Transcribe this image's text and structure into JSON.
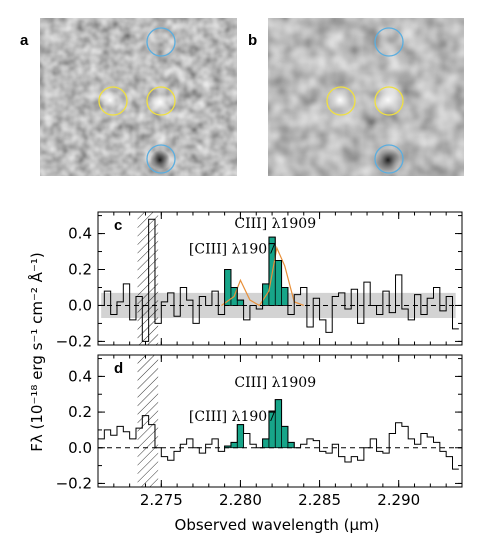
{
  "images": [
    {
      "label": "a",
      "circle_colors": [
        "#f0e040",
        "#f0e040",
        "#5aaee0",
        "#5aaee0"
      ]
    },
    {
      "label": "b",
      "circle_colors": [
        "#f0e040",
        "#f0e040",
        "#5aaee0",
        "#5aaee0"
      ]
    }
  ],
  "colors": {
    "fill": "#17a589",
    "model": "#e8903a",
    "noise": "#d3d3d3",
    "zero": "#000000"
  },
  "chart_data": [
    {
      "type": "line",
      "panel_label": "c",
      "xlabel": "Observed wavelength (μm)",
      "ylabel": "Fλ (10⁻¹⁸ erg s⁻¹ cm⁻² Å⁻¹)",
      "xlim": [
        2.271,
        2.294
      ],
      "ylim": [
        -0.22,
        0.52
      ],
      "yticks": [
        "−0.2",
        "0.0",
        "0.2",
        "0.4"
      ],
      "xticks": [],
      "hatch_range": [
        2.2735,
        2.2748
      ],
      "noise_sigma": 0.07,
      "annotations": [
        {
          "text": "[CIII] λ1907",
          "x": 2.2795,
          "y": 0.29
        },
        {
          "text": "CIII] λ1909",
          "x": 2.2822,
          "y": 0.43
        }
      ],
      "x": [
        2.2712,
        2.2716,
        2.272,
        2.2724,
        2.2728,
        2.2732,
        2.2736,
        2.274,
        2.2744,
        2.2748,
        2.2752,
        2.2756,
        2.276,
        2.2764,
        2.2768,
        2.2772,
        2.2776,
        2.278,
        2.2784,
        2.2788,
        2.2792,
        2.2796,
        2.28,
        2.2804,
        2.2808,
        2.2812,
        2.2816,
        2.282,
        2.2824,
        2.2828,
        2.2832,
        2.2836,
        2.284,
        2.2844,
        2.2848,
        2.2852,
        2.2856,
        2.286,
        2.2864,
        2.2868,
        2.2872,
        2.2876,
        2.288,
        2.2884,
        2.2888,
        2.2892,
        2.2896,
        2.29,
        2.2904,
        2.2908,
        2.2912,
        2.2916,
        2.292,
        2.2924,
        2.2928,
        2.2932,
        2.2936
      ],
      "values": [
        0.0,
        0.08,
        -0.05,
        0.02,
        0.12,
        -0.08,
        0.05,
        -0.2,
        0.48,
        -0.1,
        0.02,
        0.07,
        -0.06,
        0.1,
        0.03,
        -0.1,
        0.05,
        0.0,
        0.08,
        -0.05,
        0.2,
        0.1,
        0.03,
        -0.08,
        0.0,
        -0.02,
        0.12,
        0.38,
        0.25,
        0.1,
        -0.05,
        0.06,
        0.1,
        -0.12,
        0.04,
        -0.08,
        -0.15,
        0.05,
        0.07,
        -0.02,
        0.09,
        -0.1,
        0.13,
        0.0,
        -0.05,
        0.08,
        -0.04,
        0.17,
        -0.02,
        -0.08,
        0.06,
        -0.05,
        0.04,
        0.1,
        -0.03,
        0.05,
        -0.13
      ],
      "model": [
        [
          2.2788,
          0.0
        ],
        [
          2.2796,
          0.05
        ],
        [
          2.28,
          0.14
        ],
        [
          2.2806,
          0.03
        ],
        [
          2.2812,
          0.0
        ],
        [
          2.2818,
          0.08
        ],
        [
          2.2823,
          0.32
        ],
        [
          2.2828,
          0.22
        ],
        [
          2.2834,
          0.02
        ],
        [
          2.284,
          0.0
        ]
      ],
      "fill_ranges": [
        [
          2.279,
          2.2802
        ],
        [
          2.2816,
          2.2832
        ]
      ]
    },
    {
      "type": "line",
      "panel_label": "d",
      "xlabel": "Observed wavelength (μm)",
      "ylabel": "",
      "xlim": [
        2.271,
        2.294
      ],
      "ylim": [
        -0.22,
        0.52
      ],
      "yticks": [
        "−0.2",
        "0.0",
        "0.2",
        "0.4"
      ],
      "xticks": [
        "2.275",
        "2.280",
        "2.285",
        "2.290"
      ],
      "xtick_values": [
        2.275,
        2.28,
        2.285,
        2.29
      ],
      "hatch_range": [
        2.2735,
        2.2748
      ],
      "annotations": [
        {
          "text": "[CIII] λ1907",
          "x": 2.2795,
          "y": 0.15
        },
        {
          "text": "CIII] λ1909",
          "x": 2.2822,
          "y": 0.34
        }
      ],
      "x": [
        2.2712,
        2.2716,
        2.272,
        2.2724,
        2.2728,
        2.2732,
        2.2736,
        2.274,
        2.2744,
        2.2748,
        2.2752,
        2.2756,
        2.276,
        2.2764,
        2.2768,
        2.2772,
        2.2776,
        2.278,
        2.2784,
        2.2788,
        2.2792,
        2.2796,
        2.28,
        2.2804,
        2.2808,
        2.2812,
        2.2816,
        2.282,
        2.2824,
        2.2828,
        2.2832,
        2.2836,
        2.284,
        2.2844,
        2.2848,
        2.2852,
        2.2856,
        2.286,
        2.2864,
        2.2868,
        2.2872,
        2.2876,
        2.288,
        2.2884,
        2.2888,
        2.2892,
        2.2896,
        2.29,
        2.2904,
        2.2908,
        2.2912,
        2.2916,
        2.292,
        2.2924,
        2.2928,
        2.2932,
        2.2936
      ],
      "values": [
        0.05,
        0.1,
        0.07,
        0.12,
        0.09,
        0.05,
        0.11,
        0.18,
        0.13,
        0.0,
        -0.05,
        -0.07,
        -0.02,
        0.02,
        0.05,
        0.0,
        -0.03,
        0.02,
        0.05,
        -0.02,
        0.01,
        0.03,
        0.13,
        0.08,
        0.02,
        0.0,
        0.05,
        0.2,
        0.27,
        0.12,
        0.03,
        0.0,
        0.02,
        0.05,
        0.04,
        -0.02,
        -0.03,
        0.02,
        -0.05,
        -0.08,
        -0.05,
        -0.07,
        0.0,
        0.05,
        -0.02,
        -0.03,
        0.08,
        0.14,
        0.12,
        0.05,
        0.02,
        0.08,
        0.06,
        0.03,
        -0.02,
        -0.05,
        -0.12
      ],
      "fill_ranges": [
        [
          2.279,
          2.2802
        ],
        [
          2.2816,
          2.2832
        ]
      ]
    }
  ]
}
